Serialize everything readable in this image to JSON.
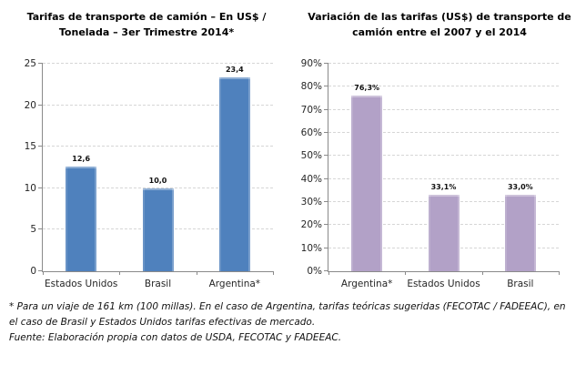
{
  "chart_data": [
    {
      "type": "bar",
      "title": "Tarifas de transporte de camión – En US$ / Tonelada – 3er Trimestre 2014*",
      "title_lines": [
        "Tarifas de transporte de camión – En US$ /",
        "Tonelada – 3er Trimestre 2014*"
      ],
      "categories": [
        "Estados Unidos",
        "Brasil",
        "Argentina*"
      ],
      "values": [
        12.6,
        10.0,
        23.4
      ],
      "value_labels": [
        "12,6",
        "10,0",
        "23,4"
      ],
      "ylim": [
        0,
        25
      ],
      "ytick_step": 5,
      "ytick_labels": [
        "0",
        "5",
        "10",
        "15",
        "20",
        "25"
      ],
      "bar_color": "#4f81bd",
      "grid": "dashed-horizontal",
      "legend": "none",
      "xlabel": "",
      "ylabel": ""
    },
    {
      "type": "bar",
      "title": "Variación de las tarifas (US$) de transporte de camión entre el 2007 y el 2014",
      "title_lines": [
        "Variación de las tarifas (US$) de transporte de",
        "camión entre el 2007 y el 2014"
      ],
      "categories": [
        "Argentina*",
        "Estados Unidos",
        "Brasil"
      ],
      "values": [
        76.3,
        33.1,
        33.0
      ],
      "value_labels": [
        "76,3%",
        "33,1%",
        "33,0%"
      ],
      "ylim": [
        0,
        90
      ],
      "ytick_step": 10,
      "ytick_labels": [
        "0%",
        "10%",
        "20%",
        "30%",
        "40%",
        "50%",
        "60%",
        "70%",
        "80%",
        "90%"
      ],
      "bar_color": "#b2a1c7",
      "grid": "dashed-horizontal",
      "legend": "none",
      "xlabel": "",
      "ylabel": ""
    }
  ],
  "footnotes": {
    "asterisk": "* Para un viaje de 161 km (100 millas). En el caso de Argentina, tarifas teóricas sugeridas (FECOTAC / FADEEAC), en el caso de Brasil y Estados Unidos tarifas efectivas de mercado.",
    "source": "Fuente: Elaboración propia con datos de USDA, FECOTAC y FADEEAC."
  },
  "colors": {
    "bar_blue": "#4f81bd",
    "bar_purple": "#b2a1c7",
    "gridline": "#d6d6d6",
    "axis": "#8a8a8a"
  }
}
